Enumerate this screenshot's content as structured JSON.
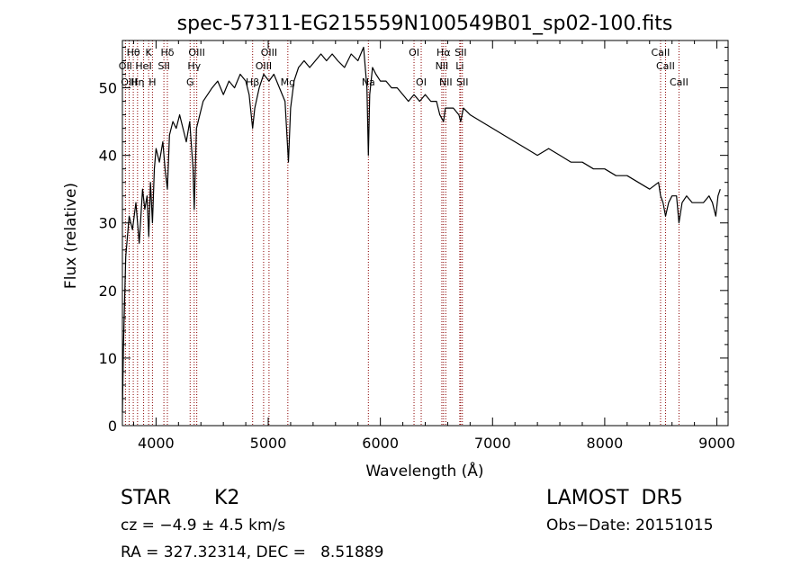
{
  "chart_data": {
    "type": "line",
    "title": "spec-57311-EG215559N100549B01_sp02-100.fits",
    "xlabel": "Wavelength (Å)",
    "ylabel": "Flux (relative)",
    "xlim": [
      3700,
      9100
    ],
    "ylim": [
      0,
      57
    ],
    "xticks": [
      4000,
      5000,
      6000,
      7000,
      8000,
      9000
    ],
    "yticks": [
      0,
      10,
      20,
      30,
      40,
      50
    ],
    "grid": false,
    "line_color": "#000000",
    "marker_color": "#8b0000",
    "series": [
      {
        "x": [
          3700,
          3710,
          3730,
          3760,
          3790,
          3820,
          3850,
          3880,
          3900,
          3920,
          3935,
          3950,
          3968,
          3985,
          4000,
          4030,
          4060,
          4080,
          4101,
          4120,
          4150,
          4180,
          4210,
          4240,
          4270,
          4300,
          4330,
          4340,
          4360,
          4390,
          4420,
          4460,
          4500,
          4550,
          4600,
          4650,
          4700,
          4750,
          4800,
          4830,
          4861,
          4880,
          4920,
          4960,
          5007,
          5050,
          5100,
          5150,
          5180,
          5200,
          5230,
          5270,
          5320,
          5370,
          5420,
          5470,
          5520,
          5570,
          5620,
          5680,
          5740,
          5800,
          5850,
          5880,
          5893,
          5905,
          5930,
          5960,
          6000,
          6050,
          6100,
          6150,
          6200,
          6250,
          6300,
          6350,
          6400,
          6450,
          6500,
          6530,
          6563,
          6580,
          6600,
          6650,
          6700,
          6716,
          6740,
          6800,
          6900,
          7000,
          7100,
          7200,
          7300,
          7400,
          7500,
          7600,
          7700,
          7800,
          7900,
          8000,
          8100,
          8200,
          8300,
          8400,
          8480,
          8498,
          8520,
          8542,
          8570,
          8600,
          8640,
          8662,
          8690,
          8730,
          8780,
          8830,
          8880,
          8930,
          8960,
          8990,
          9010,
          9030
        ],
        "y": [
          2,
          12,
          25,
          31,
          29,
          33,
          27,
          35,
          32,
          34,
          28,
          36,
          30,
          38,
          41,
          39,
          42,
          38,
          35,
          43,
          45,
          44,
          46,
          44,
          42,
          45,
          38,
          32,
          44,
          46,
          48,
          49,
          50,
          51,
          49,
          51,
          50,
          52,
          51,
          49,
          44,
          47,
          50,
          52,
          51,
          52,
          50,
          48,
          39,
          47,
          51,
          53,
          54,
          53,
          54,
          55,
          54,
          55,
          54,
          53,
          55,
          54,
          56,
          50,
          40,
          49,
          53,
          52,
          51,
          51,
          50,
          50,
          49,
          48,
          49,
          48,
          49,
          48,
          48,
          46,
          45,
          47,
          47,
          47,
          46,
          45,
          47,
          46,
          45,
          44,
          43,
          42,
          41,
          40,
          41,
          40,
          39,
          39,
          38,
          38,
          37,
          37,
          36,
          35,
          36,
          34,
          33,
          31,
          33,
          34,
          34,
          30,
          33,
          34,
          33,
          33,
          33,
          34,
          33,
          31,
          34,
          35
        ]
      }
    ],
    "line_markers": [
      {
        "label": "Hθ",
        "x": 3797,
        "row": 1
      },
      {
        "label": "OII",
        "x": 3727,
        "row": 2
      },
      {
        "label": "OIII",
        "x": 3760,
        "row": 3
      },
      {
        "label": "K",
        "x": 3934,
        "row": 1
      },
      {
        "label": "HeI",
        "x": 3889,
        "row": 2
      },
      {
        "label": "Hη",
        "x": 3835,
        "row": 3
      },
      {
        "label": "Hδ",
        "x": 4101,
        "row": 1
      },
      {
        "label": "SII",
        "x": 4070,
        "row": 2
      },
      {
        "label": "H",
        "x": 3968,
        "row": 3
      },
      {
        "label": "OIII",
        "x": 4363,
        "row": 1
      },
      {
        "label": "Hγ",
        "x": 4340,
        "row": 2
      },
      {
        "label": "G",
        "x": 4304,
        "row": 3
      },
      {
        "label": "OIII",
        "x": 5007,
        "row": 1
      },
      {
        "label": "OIII",
        "x": 4959,
        "row": 2
      },
      {
        "label": "Hβ",
        "x": 4861,
        "row": 3
      },
      {
        "label": "Mg",
        "x": 5175,
        "row": 3
      },
      {
        "label": "Na",
        "x": 5893,
        "row": 3
      },
      {
        "label": "OI",
        "x": 6300,
        "row": 1
      },
      {
        "label": "OI",
        "x": 6364,
        "row": 3
      },
      {
        "label": "Hα",
        "x": 6563,
        "row": 1
      },
      {
        "label": "NII",
        "x": 6548,
        "row": 2
      },
      {
        "label": "NII",
        "x": 6583,
        "row": 3
      },
      {
        "label": "SII",
        "x": 6716,
        "row": 1
      },
      {
        "label": "Li",
        "x": 6708,
        "row": 2
      },
      {
        "label": "SII",
        "x": 6731,
        "row": 3
      },
      {
        "label": "CaII",
        "x": 8498,
        "row": 1
      },
      {
        "label": "CaII",
        "x": 8542,
        "row": 2
      },
      {
        "label": "CaII",
        "x": 8662,
        "row": 3
      }
    ]
  },
  "info": {
    "class": "STAR",
    "subclass": "K2",
    "survey": "LAMOST  DR5",
    "cz": "cz = −4.9 ± 4.5 km/s",
    "obs_date": "Obs−Date: 20151015",
    "coords": "RA = 327.32314, DEC =   8.51889"
  }
}
